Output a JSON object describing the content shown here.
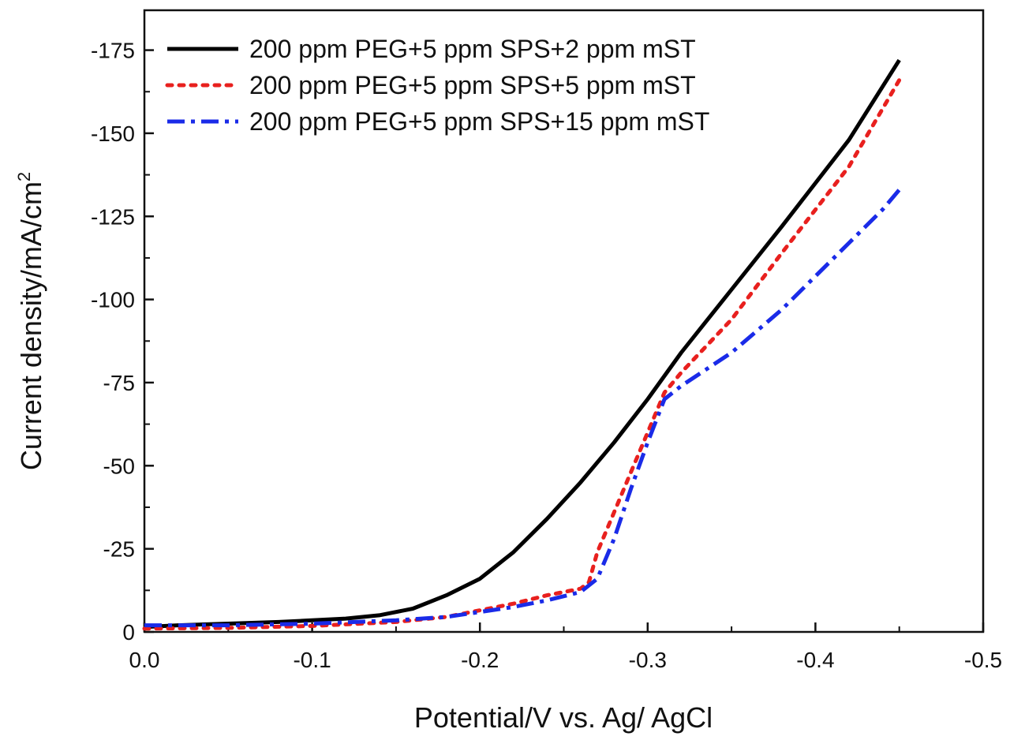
{
  "chart_data": {
    "type": "line",
    "title": "",
    "xlabel": "Potential/V vs. Ag/ AgCl",
    "ylabel": "Current density/mA/cm",
    "ylabel_superscript": "2",
    "xlim": [
      0.0,
      -0.5
    ],
    "ylim": [
      0,
      -187
    ],
    "x_ticks": [
      0.0,
      -0.1,
      -0.2,
      -0.3,
      -0.4,
      -0.5
    ],
    "x_tick_labels": [
      "0.0",
      "-0.1",
      "-0.2",
      "-0.3",
      "-0.4",
      "-0.5"
    ],
    "y_ticks": [
      0,
      -25,
      -50,
      -75,
      -100,
      -125,
      -150,
      -175
    ],
    "y_tick_labels": [
      "0",
      "-25",
      "-50",
      "-75",
      "-100",
      "-125",
      "-150",
      "-175"
    ],
    "grid": false,
    "legend_position": "top",
    "series": [
      {
        "name": "200 ppm PEG+5 ppm SPS+2 ppm mST",
        "color": "#000000",
        "style": "solid",
        "x": [
          0.0,
          -0.02,
          -0.05,
          -0.08,
          -0.1,
          -0.12,
          -0.14,
          -0.16,
          -0.18,
          -0.2,
          -0.22,
          -0.24,
          -0.26,
          -0.28,
          -0.3,
          -0.32,
          -0.35,
          -0.38,
          -0.4,
          -0.42,
          -0.45
        ],
        "y": [
          -1.5,
          -2,
          -2.5,
          -3,
          -3.5,
          -4,
          -5,
          -7,
          -11,
          -16,
          -24,
          -34,
          -45,
          -57,
          -70,
          -84,
          -103,
          -122,
          -135,
          -148,
          -172
        ]
      },
      {
        "name": "200 ppm PEG+5 ppm SPS+5 ppm mST",
        "color": "#e8201e",
        "style": "dotted",
        "x": [
          0.0,
          -0.05,
          -0.1,
          -0.15,
          -0.18,
          -0.2,
          -0.22,
          -0.24,
          -0.26,
          -0.265,
          -0.27,
          -0.28,
          -0.29,
          -0.3,
          -0.31,
          -0.32,
          -0.35,
          -0.38,
          -0.4,
          -0.42,
          -0.45
        ],
        "y": [
          -1,
          -1.2,
          -1.8,
          -3,
          -4.5,
          -6.5,
          -8.5,
          -11,
          -13,
          -15,
          -24,
          -36,
          -48,
          -60,
          -72,
          -78,
          -94,
          -114,
          -127,
          -140,
          -166
        ]
      },
      {
        "name": "200 ppm PEG+5 ppm SPS+15 ppm mST",
        "color": "#1a2be8",
        "style": "dashdot",
        "x": [
          0.0,
          -0.05,
          -0.1,
          -0.15,
          -0.18,
          -0.2,
          -0.22,
          -0.24,
          -0.26,
          -0.27,
          -0.28,
          -0.29,
          -0.3,
          -0.31,
          -0.32,
          -0.35,
          -0.38,
          -0.4,
          -0.42,
          -0.44,
          -0.45
        ],
        "y": [
          -2,
          -2,
          -2.5,
          -3.5,
          -4.5,
          -6,
          -7.5,
          -9.5,
          -12,
          -16,
          -28,
          -43,
          -57,
          -70,
          -74,
          -84,
          -97,
          -107,
          -117,
          -127,
          -133
        ]
      }
    ]
  }
}
